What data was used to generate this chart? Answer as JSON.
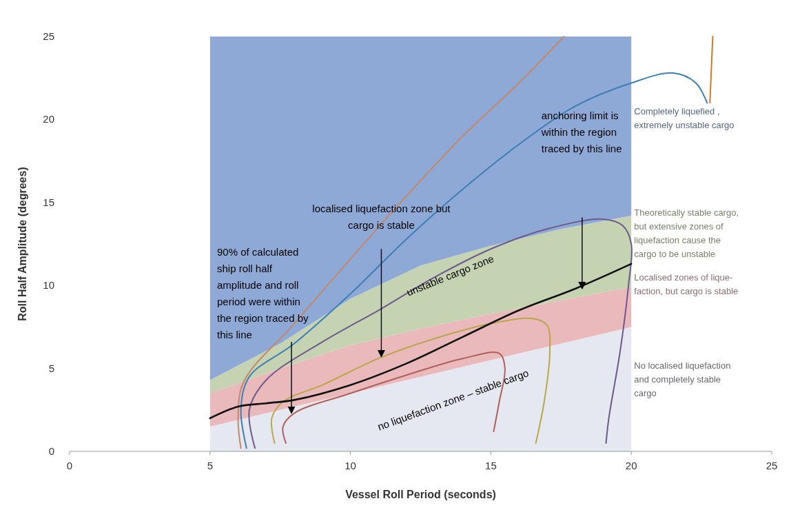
{
  "chart_data": {
    "type": "area",
    "stacked": true,
    "xlabel": "Vessel Roll Period (seconds)",
    "ylabel": "Roll Half Amplitude (degrees)",
    "xlim": [
      0,
      25
    ],
    "ylim": [
      0,
      25
    ],
    "xticks": [
      0,
      5,
      10,
      15,
      20,
      25
    ],
    "yticks": [
      0,
      5,
      10,
      15,
      20,
      25
    ],
    "grid": false,
    "x": [
      5,
      7.5,
      10,
      12.5,
      15,
      17.5,
      20
    ],
    "series": [
      {
        "name": "No localised liquefaction\nand completely stable\ncargo",
        "color": "#e6e8f1",
        "values": [
          1.5,
          2.5,
          3.5,
          4.5,
          5.5,
          6.5,
          7.5
        ]
      },
      {
        "name": "Localised zones of  lique-\nfaction, but cargo is stable",
        "color": "#e9b9bc",
        "values": [
          2.0,
          2.5,
          2.9,
          2.9,
          2.8,
          2.6,
          2.4
        ]
      },
      {
        "name": "Theoretically stable cargo,\nbut extensive zones of\nliquefaction cause the\ncargo to be unstable",
        "color": "#c6d3b2",
        "values": [
          0.8,
          1.5,
          2.8,
          3.8,
          4.1,
          4.3,
          4.3
        ]
      },
      {
        "name": "Completely liquefied ,\nextremely unstable cargo",
        "color": "#8fa9d6",
        "values": [
          20.7,
          18.5,
          15.8,
          13.8,
          12.6,
          11.6,
          10.8
        ]
      },
      {
        "type": "line",
        "color": "#c0896a",
        "x": [
          6.1,
          6.0,
          6.2,
          8,
          10,
          12,
          14,
          16,
          17.6
        ],
        "values": [
          0.2,
          2,
          4.2,
          7.7,
          11.6,
          15.4,
          19.0,
          22.2,
          25
        ]
      },
      {
        "type": "line",
        "color": "#3b7fb6",
        "x": [
          6.3,
          6.1,
          6.4,
          8,
          10,
          12,
          14,
          16,
          18,
          20,
          21.5,
          22.3,
          22.7
        ],
        "values": [
          0.2,
          2.5,
          4.5,
          6.5,
          9.5,
          12.8,
          15.8,
          18.5,
          20.8,
          22.2,
          22.8,
          22.2,
          21
        ]
      },
      {
        "type": "line",
        "color": "#d07a2a",
        "x": [
          22.9,
          22.8
        ],
        "values": [
          25,
          21
        ]
      },
      {
        "type": "line",
        "color": "#6b5a8a",
        "x": [
          6.6,
          6.4,
          7,
          9,
          11,
          13,
          15,
          17,
          19,
          19.7,
          20,
          19.9,
          19.6,
          19.2,
          19.1
        ],
        "values": [
          0.2,
          2.5,
          4.3,
          6.6,
          8.5,
          10.5,
          12.2,
          13.4,
          14,
          13.6,
          12.5,
          10,
          6,
          2,
          0.5
        ]
      },
      {
        "type": "line",
        "color": "#b8a84a",
        "x": [
          7.3,
          7.2,
          7.6,
          9,
          11,
          13,
          15,
          16.5,
          17,
          17.1,
          16.9,
          16.6
        ],
        "values": [
          0.5,
          2,
          3.0,
          4.0,
          5.6,
          6.8,
          7.7,
          8.0,
          7.6,
          6,
          3,
          0.5
        ]
      },
      {
        "type": "line",
        "color": "#b0605a",
        "x": [
          7.7,
          7.6,
          8,
          10,
          12,
          14,
          15.3,
          15.5,
          15.3,
          15.1
        ],
        "values": [
          0.5,
          1.5,
          2.3,
          3.5,
          4.6,
          5.6,
          5.9,
          5,
          3,
          1.2
        ]
      },
      {
        "type": "line",
        "color": "#111111",
        "x": [
          5,
          6,
          7,
          8,
          10,
          12,
          14,
          16,
          18,
          20
        ],
        "values": [
          2.0,
          2.7,
          2.9,
          3.1,
          4.0,
          5.3,
          6.9,
          8.5,
          9.8,
          11.3
        ]
      }
    ],
    "annotations": [
      {
        "text": "90% of calculated\nship roll half\namplitude and roll\nperiod were within\nthe region traced by\nthis line",
        "x": 7.9,
        "y": 2.3
      },
      "localised liquefaction zone but\ncargo is stable",
      "anchoring limit is\nwithin the region\ntraced by this line",
      "unstable cargo zone",
      "no liquefaction zone – stable cargo"
    ]
  }
}
